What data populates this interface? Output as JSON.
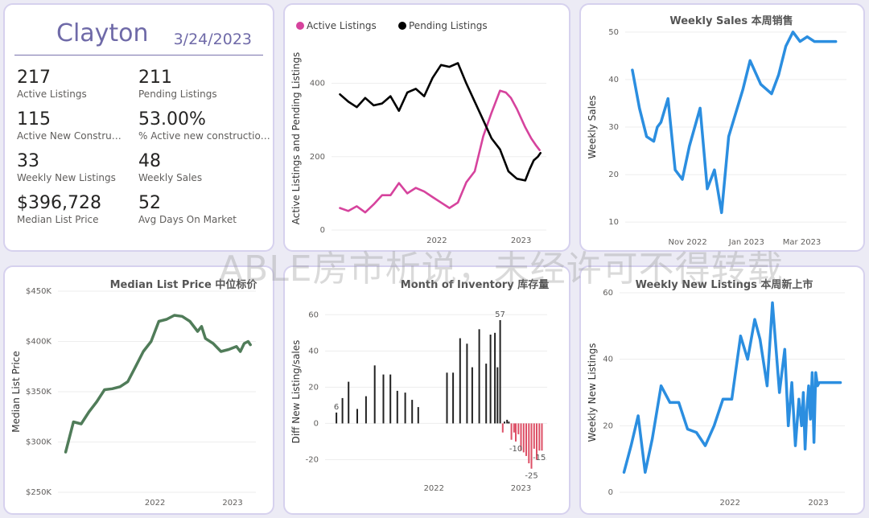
{
  "kpi": {
    "city": "Clayton",
    "date": "3/24/2023",
    "items": [
      {
        "value": "217",
        "label": "Active Listings"
      },
      {
        "value": "211",
        "label": "Pending Listings"
      },
      {
        "value": "115",
        "label": "Active New Constructions"
      },
      {
        "value": "53.00%",
        "label": "% Active new constructions"
      },
      {
        "value": "33",
        "label": "Weekly New Listings"
      },
      {
        "value": "48",
        "label": "Weekly Sales"
      },
      {
        "value": "$396,728",
        "label": "Median List Price"
      },
      {
        "value": "52",
        "label": "Avg Days On Market"
      }
    ]
  },
  "watermark": "ABLE房市析说，未经许可不得转载",
  "colors": {
    "active": "#d6439d",
    "pending": "#000000",
    "blue": "#2b8ee0",
    "green": "#507c59",
    "bar_pos": "#222222",
    "bar_neg": "#dd4f66"
  },
  "chart_data": [
    {
      "id": "listings",
      "type": "line",
      "title": "",
      "xlabel": "",
      "ylabel": "Active Listings and Pending Listings",
      "x_range": [
        2020.75,
        2023.3
      ],
      "ylim": [
        0,
        500
      ],
      "yticks": [
        0,
        200,
        400
      ],
      "xticks": [
        {
          "v": 2022,
          "label": "2022"
        },
        {
          "v": 2023,
          "label": "2023"
        }
      ],
      "series": [
        {
          "name": "Active Listings",
          "color": "#d6439d",
          "x": [
            2020.85,
            2020.95,
            2021.05,
            2021.15,
            2021.25,
            2021.35,
            2021.45,
            2021.55,
            2021.65,
            2021.75,
            2021.85,
            2021.95,
            2022.05,
            2022.15,
            2022.25,
            2022.35,
            2022.45,
            2022.55,
            2022.65,
            2022.75,
            2022.82,
            2022.88,
            2022.95,
            2023.05,
            2023.12,
            2023.18,
            2023.22
          ],
          "y": [
            60,
            52,
            65,
            48,
            70,
            95,
            95,
            128,
            100,
            115,
            105,
            90,
            75,
            60,
            75,
            130,
            160,
            255,
            320,
            380,
            375,
            360,
            330,
            280,
            250,
            230,
            218
          ]
        },
        {
          "name": "Pending Listings",
          "color": "#000000",
          "x": [
            2020.85,
            2020.95,
            2021.05,
            2021.15,
            2021.25,
            2021.35,
            2021.45,
            2021.55,
            2021.65,
            2021.75,
            2021.85,
            2021.95,
            2022.05,
            2022.15,
            2022.25,
            2022.35,
            2022.45,
            2022.55,
            2022.65,
            2022.75,
            2022.85,
            2022.95,
            2023.05,
            2023.1,
            2023.15,
            2023.2,
            2023.23
          ],
          "y": [
            370,
            350,
            335,
            360,
            340,
            345,
            365,
            325,
            375,
            385,
            365,
            415,
            450,
            445,
            455,
            400,
            350,
            300,
            250,
            220,
            160,
            140,
            135,
            165,
            190,
            200,
            210
          ]
        }
      ]
    },
    {
      "id": "weekly-sales",
      "type": "line",
      "title": "Weekly Sales 本周销售",
      "xlabel": "",
      "ylabel": "Weekly Sales",
      "x_range": [
        2022.7,
        2023.32
      ],
      "ylim": [
        8,
        52
      ],
      "yticks": [
        10,
        20,
        30,
        40,
        50
      ],
      "xticks": [
        {
          "v": 2022.875,
          "label": "Nov 2022"
        },
        {
          "v": 2023.04,
          "label": "Jan 2023"
        },
        {
          "v": 2023.195,
          "label": "Mar 2023"
        }
      ],
      "series": [
        {
          "name": "Weekly Sales",
          "color": "#2b8ee0",
          "x": [
            2022.72,
            2022.74,
            2022.76,
            2022.78,
            2022.79,
            2022.8,
            2022.82,
            2022.84,
            2022.86,
            2022.88,
            2022.91,
            2022.93,
            2022.95,
            2022.97,
            2022.99,
            2023.01,
            2023.03,
            2023.05,
            2023.08,
            2023.11,
            2023.13,
            2023.15,
            2023.17,
            2023.19,
            2023.21,
            2023.23,
            2023.25,
            2023.27,
            2023.29
          ],
          "y": [
            42,
            34,
            28,
            27,
            30,
            31,
            36,
            21,
            19,
            26,
            34,
            17,
            21,
            12,
            28,
            33,
            38,
            44,
            39,
            37,
            41,
            47,
            50,
            48,
            49,
            48,
            48,
            48,
            48
          ]
        }
      ]
    },
    {
      "id": "median-price",
      "type": "line",
      "title": "Median List Price 中位标价",
      "xlabel": "",
      "ylabel": "Median List Price",
      "x_range": [
        2020.75,
        2023.3
      ],
      "ylim": [
        250000,
        450000
      ],
      "yticks": [
        250000,
        300000,
        350000,
        400000,
        450000
      ],
      "ytick_labels": [
        "$250K",
        "$300K",
        "$350K",
        "$400K",
        "$450K"
      ],
      "xticks": [
        {
          "v": 2022,
          "label": "2022"
        },
        {
          "v": 2023,
          "label": "2023"
        }
      ],
      "series": [
        {
          "name": "Median List Price",
          "color": "#507c59",
          "x": [
            2020.85,
            2020.95,
            2021.05,
            2021.15,
            2021.25,
            2021.35,
            2021.45,
            2021.55,
            2021.65,
            2021.75,
            2021.85,
            2021.95,
            2022.05,
            2022.15,
            2022.25,
            2022.35,
            2022.45,
            2022.55,
            2022.6,
            2022.65,
            2022.75,
            2022.85,
            2022.95,
            2023.05,
            2023.1,
            2023.15,
            2023.2,
            2023.23
          ],
          "y": [
            290000,
            320000,
            318000,
            330000,
            340000,
            352000,
            353000,
            355000,
            360000,
            375000,
            390000,
            400000,
            420000,
            422000,
            426000,
            425000,
            420000,
            410000,
            415000,
            403000,
            398000,
            390000,
            392000,
            395000,
            390000,
            398000,
            400000,
            396728
          ]
        }
      ]
    },
    {
      "id": "inventory",
      "type": "bar",
      "title": "Month of Inventory 库存量",
      "xlabel": "",
      "ylabel": "Diff New Listing/sales",
      "x_range": [
        2020.75,
        2023.3
      ],
      "ylim": [
        -30,
        65
      ],
      "yticks": [
        -20,
        0,
        20,
        40,
        60
      ],
      "xticks": [
        {
          "v": 2022,
          "label": "2022"
        },
        {
          "v": 2023,
          "label": "2023"
        }
      ],
      "x": [
        2020.88,
        2020.95,
        2021.02,
        2021.12,
        2021.22,
        2021.32,
        2021.42,
        2021.5,
        2021.58,
        2021.67,
        2021.75,
        2021.82,
        2022.15,
        2022.22,
        2022.3,
        2022.38,
        2022.44,
        2022.52,
        2022.6,
        2022.65,
        2022.7,
        2022.73,
        2022.76,
        2022.79,
        2022.81,
        2022.84,
        2022.86,
        2022.89,
        2022.92,
        2022.94,
        2022.97,
        2023.0,
        2023.03,
        2023.06,
        2023.09,
        2023.12,
        2023.15,
        2023.18,
        2023.21,
        2023.24
      ],
      "values": [
        6,
        14,
        23,
        8,
        15,
        32,
        27,
        27,
        18,
        17,
        13,
        9,
        28,
        28,
        47,
        44,
        31,
        52,
        33,
        49,
        50,
        31,
        57,
        -5,
        1,
        2,
        1,
        -9,
        -5,
        -10,
        -6,
        -15,
        -16,
        -18,
        -22,
        -25,
        -14,
        -20,
        -15,
        -15
      ],
      "labels": [
        {
          "i": 0,
          "text": "6"
        },
        {
          "i": 22,
          "text": "57"
        },
        {
          "i": 29,
          "text": "-10"
        },
        {
          "i": 35,
          "text": "-25"
        },
        {
          "i": 38,
          "text": "-15"
        }
      ]
    },
    {
      "id": "weekly-new-listings",
      "type": "line",
      "title": "Weekly New Listings 本周新上市",
      "xlabel": "",
      "ylabel": "Weekly New Listings",
      "x_range": [
        2020.75,
        2023.3
      ],
      "ylim": [
        0,
        60
      ],
      "yticks": [
        0,
        20,
        40,
        60
      ],
      "xticks": [
        {
          "v": 2022,
          "label": "2022"
        },
        {
          "v": 2023,
          "label": "2023"
        }
      ],
      "series": [
        {
          "name": "Weekly New Listings",
          "color": "#2b8ee0",
          "x": [
            2020.8,
            2020.88,
            2020.96,
            2021.04,
            2021.12,
            2021.22,
            2021.32,
            2021.42,
            2021.52,
            2021.62,
            2021.72,
            2021.82,
            2021.92,
            2022.02,
            2022.12,
            2022.2,
            2022.28,
            2022.34,
            2022.42,
            2022.48,
            2022.56,
            2022.62,
            2022.66,
            2022.7,
            2022.74,
            2022.78,
            2022.81,
            2022.83,
            2022.85,
            2022.87,
            2022.89,
            2022.91,
            2022.93,
            2022.95,
            2022.97,
            2022.99,
            2023.01,
            2023.04,
            2023.07,
            2023.09,
            2023.11,
            2023.14,
            2023.16,
            2023.18,
            2023.2,
            2023.22,
            2023.25
          ],
          "y": [
            6,
            14,
            23,
            6,
            16,
            32,
            27,
            27,
            19,
            18,
            14,
            20,
            28,
            28,
            47,
            40,
            52,
            46,
            32,
            57,
            30,
            43,
            20,
            33,
            14,
            28,
            20,
            30,
            13,
            25,
            32,
            22,
            36,
            15,
            36,
            32,
            33,
            33,
            33,
            33,
            33,
            33,
            33,
            33,
            33,
            33,
            33
          ]
        }
      ]
    }
  ]
}
